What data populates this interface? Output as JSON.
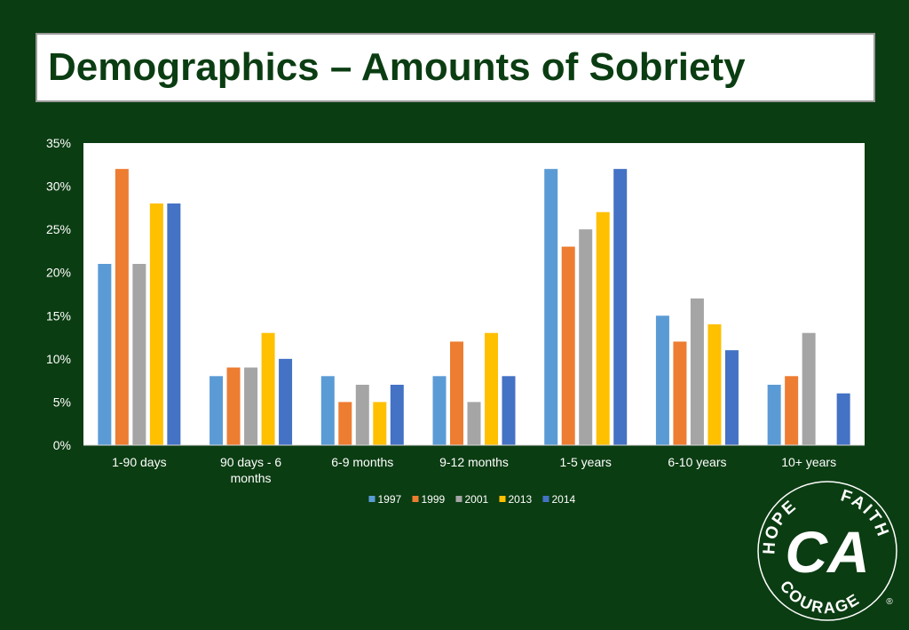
{
  "header": {
    "title": "Demographics – Amounts of Sobriety"
  },
  "colors": {
    "background": "#0b3d12",
    "title_text": "#0b3d12",
    "series": [
      "#5b9bd5",
      "#ed7d31",
      "#a5a5a5",
      "#ffc000",
      "#4472c4"
    ]
  },
  "chart_data": {
    "type": "bar",
    "categories": [
      "1-90 days",
      "90 days - 6 months",
      "6-9 months",
      "9-12 months",
      "1-5 years",
      "6-10 years",
      "10+ years"
    ],
    "category_lines": [
      [
        "1-90 days"
      ],
      [
        "90 days - 6",
        "months"
      ],
      [
        "6-9 months"
      ],
      [
        "9-12 months"
      ],
      [
        "1-5 years"
      ],
      [
        "6-10 years"
      ],
      [
        "10+ years"
      ]
    ],
    "series": [
      {
        "name": "1997",
        "values": [
          21,
          8,
          8,
          8,
          32,
          15,
          7
        ]
      },
      {
        "name": "1999",
        "values": [
          32,
          9,
          5,
          12,
          23,
          12,
          8
        ]
      },
      {
        "name": "2001",
        "values": [
          21,
          9,
          7,
          5,
          25,
          17,
          13
        ]
      },
      {
        "name": "2013",
        "values": [
          28,
          13,
          5,
          13,
          27,
          14,
          0
        ]
      },
      {
        "name": "2014",
        "values": [
          28,
          10,
          7,
          8,
          32,
          11,
          6
        ]
      }
    ],
    "ylim": [
      0,
      35
    ],
    "yticks": [
      "0%",
      "5%",
      "10%",
      "15%",
      "20%",
      "25%",
      "30%",
      "35%"
    ],
    "ytick_values": [
      0,
      5,
      10,
      15,
      20,
      25,
      30,
      35
    ],
    "grid": false,
    "legend_position": "bottom",
    "xlabel": "",
    "ylabel": ""
  },
  "logo": {
    "top_left_text": "HOPE",
    "top_right_text": "FAITH",
    "bottom_text": "COURAGE",
    "monogram": "CA",
    "registered_mark": "®"
  }
}
